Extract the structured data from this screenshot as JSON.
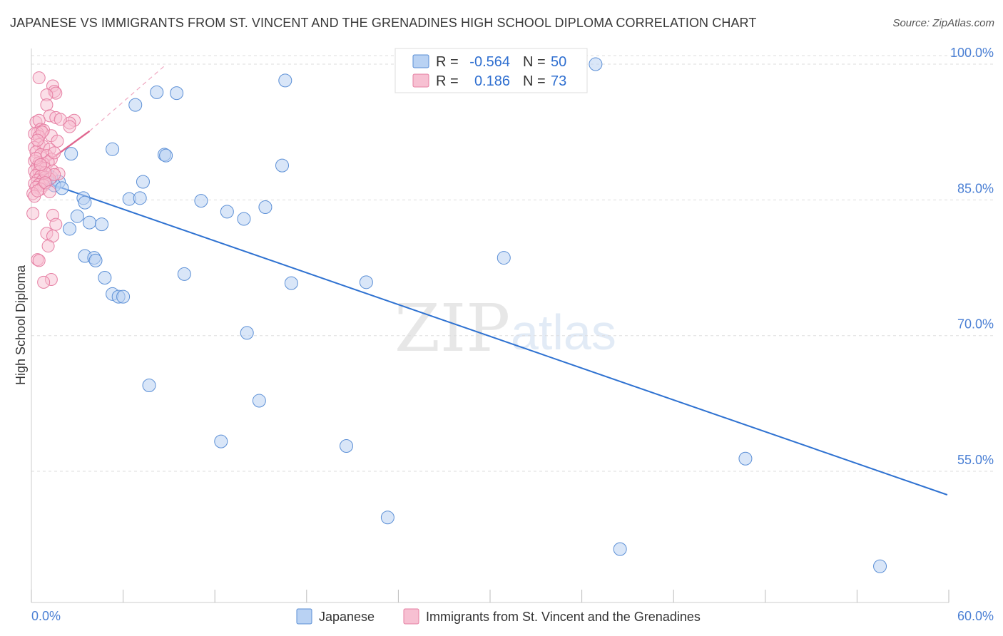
{
  "title": "JAPANESE VS IMMIGRANTS FROM ST. VINCENT AND THE GRENADINES HIGH SCHOOL DIPLOMA CORRELATION CHART",
  "source": "Source: ZipAtlas.com",
  "watermark": {
    "zip": "ZIP",
    "atlas": "atlas"
  },
  "stats": {
    "rows": [
      {
        "r_label": "R =",
        "r_value": "-0.564",
        "n_label": "N =",
        "n_value": "50"
      },
      {
        "r_label": "R =",
        "r_value": "0.186",
        "n_label": "N =",
        "n_value": "73"
      }
    ]
  },
  "colors": {
    "blue_fill": "#b9d2f3",
    "blue_stroke": "#5b8fd6",
    "blue_line": "#2f72d1",
    "pink_fill": "#f7c0d2",
    "pink_stroke": "#e67fa3",
    "pink_line": "#e0668f",
    "value_text": "#2f6fd0",
    "grid": "#dddddd"
  },
  "chart_data": {
    "type": "scatter",
    "title": "JAPANESE VS IMMIGRANTS FROM ST. VINCENT AND THE GRENADINES HIGH SCHOOL DIPLOMA CORRELATION CHART",
    "xlabel": "",
    "ylabel": "High School Diploma",
    "xlim": [
      0,
      60
    ],
    "ylim": [
      40.5,
      101.5
    ],
    "x_tick_labels": [
      "0.0%",
      "60.0%"
    ],
    "y_ticks": [
      55,
      70,
      85,
      100
    ],
    "y_tick_labels": [
      "55.0%",
      "70.0%",
      "85.0%",
      "100.0%"
    ],
    "grid": true,
    "legend_position": "bottom-center",
    "series": [
      {
        "name": "Japanese",
        "color": "#b9d2f3",
        "r": -0.564,
        "n": 50,
        "trend": {
          "x": [
            0.5,
            59.9
          ],
          "y": [
            87.2,
            52.4
          ]
        },
        "points": [
          [
            36.9,
            100.0
          ],
          [
            16.6,
            98.2
          ],
          [
            8.2,
            96.9
          ],
          [
            9.5,
            96.8
          ],
          [
            6.8,
            95.5
          ],
          [
            2.6,
            90.1
          ],
          [
            5.3,
            90.6
          ],
          [
            8.7,
            90.0
          ],
          [
            8.8,
            89.9
          ],
          [
            16.4,
            88.8
          ],
          [
            0.8,
            87.1
          ],
          [
            1.8,
            87.0
          ],
          [
            7.3,
            87.0
          ],
          [
            1.5,
            86.6
          ],
          [
            3.4,
            85.2
          ],
          [
            6.4,
            85.1
          ],
          [
            7.1,
            85.2
          ],
          [
            11.1,
            84.9
          ],
          [
            3.5,
            84.7
          ],
          [
            12.8,
            83.7
          ],
          [
            15.3,
            84.2
          ],
          [
            3.0,
            83.2
          ],
          [
            13.9,
            82.9
          ],
          [
            3.8,
            82.5
          ],
          [
            4.6,
            82.3
          ],
          [
            2.5,
            81.8
          ],
          [
            3.5,
            78.8
          ],
          [
            4.1,
            78.6
          ],
          [
            4.2,
            78.3
          ],
          [
            30.9,
            78.6
          ],
          [
            10.0,
            76.8
          ],
          [
            4.8,
            76.4
          ],
          [
            21.9,
            75.9
          ],
          [
            17.0,
            75.8
          ],
          [
            5.3,
            74.6
          ],
          [
            5.7,
            74.3
          ],
          [
            6.0,
            74.3
          ],
          [
            14.1,
            70.3
          ],
          [
            7.7,
            64.5
          ],
          [
            14.9,
            62.8
          ],
          [
            12.4,
            58.3
          ],
          [
            20.6,
            57.8
          ],
          [
            46.7,
            56.4
          ],
          [
            23.3,
            49.9
          ],
          [
            38.5,
            46.4
          ],
          [
            55.5,
            44.5
          ],
          [
            1.0,
            87.3
          ],
          [
            2.0,
            86.3
          ],
          [
            1.3,
            87.5
          ],
          [
            0.9,
            86.9
          ]
        ]
      },
      {
        "name": "Immigrants from St. Vincent and the Grenadines",
        "color": "#f7c0d2",
        "r": 0.186,
        "n": 73,
        "trend": {
          "x": [
            0.3,
            3.8
          ],
          "y": [
            88.3,
            92.6
          ]
        },
        "trend_extended": {
          "x": [
            3.8,
            8.7
          ],
          "y": [
            92.6,
            99.8
          ]
        },
        "points": [
          [
            0.5,
            98.5
          ],
          [
            1.4,
            97.6
          ],
          [
            1.5,
            97.0
          ],
          [
            1.6,
            96.8
          ],
          [
            1.0,
            96.6
          ],
          [
            1.0,
            95.5
          ],
          [
            1.2,
            94.3
          ],
          [
            2.8,
            93.8
          ],
          [
            0.3,
            93.6
          ],
          [
            0.5,
            93.8
          ],
          [
            1.6,
            94.1
          ],
          [
            2.5,
            93.5
          ],
          [
            2.5,
            93.1
          ],
          [
            0.6,
            92.8
          ],
          [
            0.8,
            92.7
          ],
          [
            0.4,
            92.4
          ],
          [
            0.2,
            92.3
          ],
          [
            0.5,
            92.0
          ],
          [
            1.3,
            92.1
          ],
          [
            1.7,
            91.5
          ],
          [
            0.5,
            91.1
          ],
          [
            0.2,
            90.8
          ],
          [
            0.8,
            90.9
          ],
          [
            1.2,
            90.6
          ],
          [
            0.3,
            90.3
          ],
          [
            0.6,
            90.0
          ],
          [
            1.0,
            89.9
          ],
          [
            1.3,
            89.5
          ],
          [
            0.2,
            89.3
          ],
          [
            0.5,
            89.1
          ],
          [
            0.8,
            89.0
          ],
          [
            1.1,
            89.2
          ],
          [
            0.4,
            88.7
          ],
          [
            0.6,
            88.6
          ],
          [
            0.9,
            88.5
          ],
          [
            0.2,
            88.2
          ],
          [
            0.5,
            88.1
          ],
          [
            1.4,
            88.2
          ],
          [
            1.8,
            87.9
          ],
          [
            0.3,
            87.7
          ],
          [
            0.6,
            87.6
          ],
          [
            0.9,
            87.5
          ],
          [
            0.4,
            87.2
          ],
          [
            0.7,
            87.1
          ],
          [
            1.2,
            87.3
          ],
          [
            0.2,
            86.8
          ],
          [
            0.5,
            86.7
          ],
          [
            0.8,
            86.6
          ],
          [
            0.3,
            86.4
          ],
          [
            0.6,
            86.2
          ],
          [
            0.1,
            85.7
          ],
          [
            0.2,
            85.4
          ],
          [
            0.4,
            86.0
          ],
          [
            1.5,
            87.8
          ],
          [
            0.9,
            88.0
          ],
          [
            0.1,
            83.5
          ],
          [
            1.4,
            83.3
          ],
          [
            1.6,
            82.3
          ],
          [
            1.0,
            81.3
          ],
          [
            1.4,
            81.0
          ],
          [
            1.1,
            79.9
          ],
          [
            0.4,
            78.4
          ],
          [
            0.5,
            78.3
          ],
          [
            1.3,
            76.2
          ],
          [
            0.8,
            75.9
          ],
          [
            0.7,
            92.5
          ],
          [
            1.5,
            90.2
          ],
          [
            0.3,
            89.6
          ],
          [
            0.6,
            88.9
          ],
          [
            0.9,
            86.9
          ],
          [
            1.2,
            85.9
          ],
          [
            0.4,
            91.6
          ],
          [
            1.9,
            93.9
          ]
        ]
      }
    ]
  }
}
